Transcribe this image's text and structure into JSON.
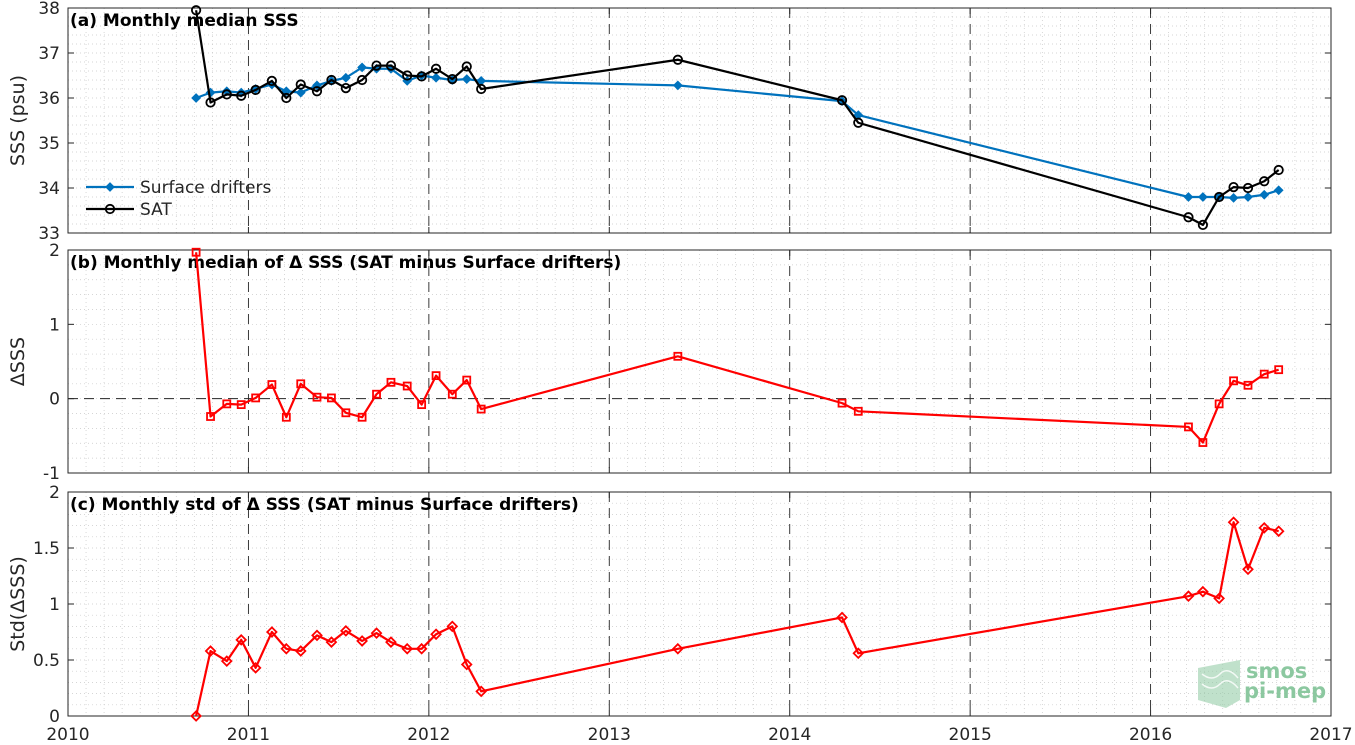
{
  "chart_data": [
    {
      "type": "line",
      "title": "(a) Monthly median SSS",
      "ylabel": "SSS (psu)",
      "xlim": [
        2010,
        2017
      ],
      "ylim": [
        33,
        38
      ],
      "yticks": [
        "33",
        "34",
        "35",
        "36",
        "37",
        "38"
      ],
      "grid": true,
      "legend": "bottom-left",
      "series": [
        {
          "name": "Surface drifters",
          "color": "#0072bd",
          "marker": "diamond",
          "x": [
            2010.71,
            2010.79,
            2010.88,
            2010.96,
            2011.04,
            2011.13,
            2011.21,
            2011.29,
            2011.38,
            2011.46,
            2011.54,
            2011.63,
            2011.71,
            2011.79,
            2011.88,
            2011.96,
            2012.04,
            2012.13,
            2012.21,
            2012.29,
            2013.38,
            2014.29,
            2014.38,
            2016.21,
            2016.29,
            2016.38,
            2016.46,
            2016.54,
            2016.63,
            2016.71
          ],
          "y": [
            36.0,
            36.12,
            36.15,
            36.12,
            36.2,
            36.3,
            36.15,
            36.12,
            36.28,
            36.38,
            36.45,
            36.68,
            36.65,
            36.65,
            36.38,
            36.5,
            36.45,
            36.4,
            36.42,
            36.38,
            36.28,
            35.93,
            35.62,
            33.8,
            33.8,
            33.8,
            33.78,
            33.8,
            33.85,
            33.95
          ]
        },
        {
          "name": "SAT",
          "color": "#000000",
          "marker": "circle",
          "x": [
            2010.71,
            2010.79,
            2010.88,
            2010.96,
            2011.04,
            2011.13,
            2011.21,
            2011.29,
            2011.38,
            2011.46,
            2011.54,
            2011.63,
            2011.71,
            2011.79,
            2011.88,
            2011.96,
            2012.04,
            2012.13,
            2012.21,
            2012.29,
            2013.38,
            2014.29,
            2014.38,
            2016.21,
            2016.29,
            2016.38,
            2016.46,
            2016.54,
            2016.63,
            2016.71
          ],
          "y": [
            37.95,
            35.9,
            36.08,
            36.05,
            36.18,
            36.38,
            36.0,
            36.3,
            36.15,
            36.4,
            36.22,
            36.4,
            36.72,
            36.72,
            36.5,
            36.48,
            36.65,
            36.42,
            36.7,
            36.2,
            36.85,
            35.95,
            35.45,
            33.35,
            33.18,
            33.8,
            34.02,
            34.0,
            34.15,
            34.4
          ]
        }
      ]
    },
    {
      "type": "line",
      "title": "(b) Monthly median of Δ SSS (SAT minus Surface drifters)",
      "ylabel": "ΔSSS",
      "xlim": [
        2010,
        2017
      ],
      "ylim": [
        -1,
        2
      ],
      "yticks": [
        "-1",
        "0",
        "1",
        "2"
      ],
      "grid": true,
      "zero_line": true,
      "series": [
        {
          "color": "#ff0000",
          "marker": "square",
          "x": [
            2010.71,
            2010.79,
            2010.88,
            2010.96,
            2011.04,
            2011.13,
            2011.21,
            2011.29,
            2011.38,
            2011.46,
            2011.54,
            2011.63,
            2011.71,
            2011.79,
            2011.88,
            2011.96,
            2012.04,
            2012.13,
            2012.21,
            2012.29,
            2013.38,
            2014.29,
            2014.38,
            2016.21,
            2016.29,
            2016.38,
            2016.46,
            2016.54,
            2016.63,
            2016.71
          ],
          "y": [
            1.97,
            -0.24,
            -0.07,
            -0.08,
            0.01,
            0.19,
            -0.25,
            0.2,
            0.02,
            0.01,
            -0.19,
            -0.25,
            0.06,
            0.22,
            0.17,
            -0.08,
            0.31,
            0.06,
            0.25,
            -0.14,
            0.57,
            -0.06,
            -0.17,
            -0.38,
            -0.59,
            -0.07,
            0.24,
            0.18,
            0.33,
            0.39
          ]
        }
      ]
    },
    {
      "type": "line",
      "title": "(c) Monthly std of Δ SSS (SAT minus Surface drifters)",
      "ylabel": "Std(ΔSSS)",
      "xlim": [
        2010,
        2017
      ],
      "ylim": [
        0,
        2
      ],
      "yticks": [
        "0",
        "0.5",
        "1",
        "1.5",
        "2"
      ],
      "xticks": [
        "2010",
        "2011",
        "2012",
        "2013",
        "2014",
        "2015",
        "2016",
        "2017"
      ],
      "grid": true,
      "series": [
        {
          "color": "#ff0000",
          "marker": "diamond-open",
          "x": [
            2010.71,
            2010.79,
            2010.88,
            2010.96,
            2011.04,
            2011.13,
            2011.21,
            2011.29,
            2011.38,
            2011.46,
            2011.54,
            2011.63,
            2011.71,
            2011.79,
            2011.88,
            2011.96,
            2012.04,
            2012.13,
            2012.21,
            2012.29,
            2013.38,
            2014.29,
            2014.38,
            2016.21,
            2016.29,
            2016.38,
            2016.46,
            2016.54,
            2016.63,
            2016.71
          ],
          "y": [
            0.0,
            0.58,
            0.49,
            0.68,
            0.43,
            0.75,
            0.6,
            0.58,
            0.72,
            0.66,
            0.76,
            0.67,
            0.74,
            0.66,
            0.6,
            0.6,
            0.73,
            0.8,
            0.46,
            0.22,
            0.6,
            0.88,
            0.56,
            1.07,
            1.11,
            1.05,
            1.73,
            1.31,
            1.68,
            1.65
          ]
        }
      ]
    }
  ],
  "logo": {
    "line1": "smos",
    "line2": "pi-mep",
    "color": "#8cc8a0"
  }
}
